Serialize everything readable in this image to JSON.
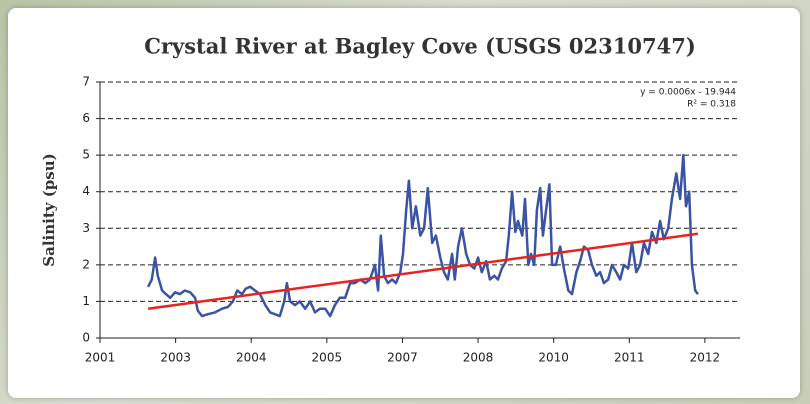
{
  "chart_data": {
    "type": "line",
    "title": "Crystal River at Bagley Cove (USGS 02310747)",
    "y_label": "Salinity (psu)",
    "annotations": [
      "y = 0.0006x - 19.944",
      "R² = 0.318"
    ],
    "xlim": [
      2001.6,
      2013.45
    ],
    "ylim": [
      0,
      7
    ],
    "xticks": [
      {
        "value": 2001.6,
        "label": "2001"
      },
      {
        "value": 2003.0,
        "label": "2003"
      },
      {
        "value": 2004.4,
        "label": "2004"
      },
      {
        "value": 2005.8,
        "label": "2005"
      },
      {
        "value": 2007.2,
        "label": "2007"
      },
      {
        "value": 2008.6,
        "label": "2008"
      },
      {
        "value": 2010.0,
        "label": "2010"
      },
      {
        "value": 2011.4,
        "label": "2011"
      },
      {
        "value": 2012.8,
        "label": "2012"
      }
    ],
    "yticks": [
      0,
      1,
      2,
      3,
      4,
      5,
      6,
      7
    ],
    "grid": true,
    "series": [
      {
        "color": "#3a53a4",
        "x": [
          2002.49,
          2002.56,
          2002.62,
          2002.67,
          2002.75,
          2002.82,
          2002.9,
          2002.99,
          2003.08,
          2003.17,
          2003.27,
          2003.36,
          2003.41,
          2003.49,
          2003.6,
          2003.73,
          2003.86,
          2003.97,
          2004.06,
          2004.14,
          2004.23,
          2004.3,
          2004.38,
          2004.47,
          2004.56,
          2004.66,
          2004.75,
          2004.84,
          2004.93,
          2005.01,
          2005.06,
          2005.12,
          2005.21,
          2005.3,
          2005.4,
          2005.49,
          2005.58,
          2005.67,
          2005.77,
          2005.86,
          2005.95,
          2006.04,
          2006.14,
          2006.23,
          2006.32,
          2006.42,
          2006.51,
          2006.6,
          2006.69,
          2006.75,
          2006.8,
          2006.86,
          2006.93,
          2007.01,
          2007.08,
          2007.16,
          2007.21,
          2007.27,
          2007.32,
          2007.38,
          2007.45,
          2007.53,
          2007.6,
          2007.67,
          2007.75,
          2007.82,
          2007.9,
          2007.97,
          2008.04,
          2008.12,
          2008.17,
          2008.23,
          2008.3,
          2008.38,
          2008.45,
          2008.53,
          2008.6,
          2008.67,
          2008.75,
          2008.82,
          2008.9,
          2008.97,
          2009.04,
          2009.12,
          2009.17,
          2009.23,
          2009.29,
          2009.34,
          2009.42,
          2009.47,
          2009.53,
          2009.58,
          2009.64,
          2009.69,
          2009.75,
          2009.8,
          2009.86,
          2009.92,
          2009.97,
          2010.04,
          2010.12,
          2010.19,
          2010.27,
          2010.34,
          2010.42,
          2010.49,
          2010.56,
          2010.64,
          2010.71,
          2010.79,
          2010.86,
          2010.93,
          2011.01,
          2011.08,
          2011.16,
          2011.23,
          2011.3,
          2011.38,
          2011.45,
          2011.53,
          2011.6,
          2011.67,
          2011.75,
          2011.82,
          2011.9,
          2011.97,
          2012.04,
          2012.12,
          2012.19,
          2012.27,
          2012.34,
          2012.4,
          2012.45,
          2012.51,
          2012.56,
          2012.62,
          2012.67
        ],
        "values": [
          1.4,
          1.6,
          2.2,
          1.7,
          1.3,
          1.2,
          1.1,
          1.25,
          1.2,
          1.3,
          1.25,
          1.1,
          0.75,
          0.6,
          0.65,
          0.7,
          0.8,
          0.85,
          1.0,
          1.3,
          1.2,
          1.35,
          1.4,
          1.3,
          1.2,
          0.9,
          0.7,
          0.65,
          0.6,
          1.0,
          1.5,
          1.0,
          0.9,
          1.0,
          0.8,
          1.0,
          0.7,
          0.8,
          0.8,
          0.6,
          0.9,
          1.1,
          1.1,
          1.5,
          1.5,
          1.6,
          1.5,
          1.6,
          2.0,
          1.3,
          2.8,
          1.7,
          1.5,
          1.6,
          1.5,
          1.8,
          2.3,
          3.5,
          4.3,
          3.0,
          3.6,
          2.8,
          3.0,
          4.1,
          2.6,
          2.8,
          2.2,
          1.8,
          1.6,
          2.3,
          1.6,
          2.5,
          3.0,
          2.3,
          2.0,
          1.9,
          2.2,
          1.8,
          2.1,
          1.6,
          1.7,
          1.6,
          1.9,
          2.1,
          2.8,
          4.0,
          2.9,
          3.2,
          2.8,
          3.8,
          2.0,
          2.3,
          2.0,
          3.5,
          4.1,
          2.8,
          3.5,
          4.2,
          2.0,
          2.0,
          2.5,
          1.9,
          1.3,
          1.2,
          1.8,
          2.1,
          2.5,
          2.4,
          2.0,
          1.7,
          1.8,
          1.5,
          1.6,
          2.0,
          1.8,
          1.6,
          2.0,
          1.9,
          2.6,
          1.8,
          2.0,
          2.6,
          2.3,
          2.9,
          2.6,
          3.2,
          2.7,
          3.0,
          3.8,
          4.5,
          3.8,
          5.0,
          3.6,
          4.0,
          2.0,
          1.3,
          1.2
        ]
      },
      {
        "color": "#e8231e",
        "x": [
          2002.49,
          2012.67
        ],
        "values": [
          0.8,
          2.85
        ]
      }
    ]
  }
}
